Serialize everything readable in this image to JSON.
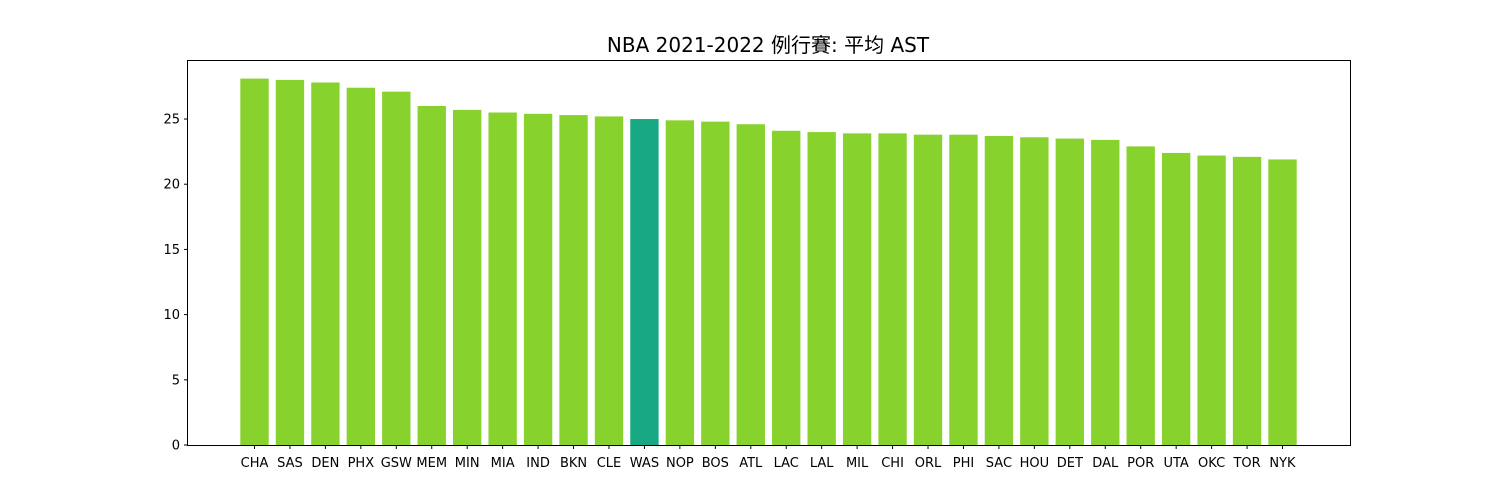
{
  "chart_data": {
    "type": "bar",
    "title": "NBA 2021-2022 例行賽: 平均 AST",
    "xlabel": "",
    "ylabel": "",
    "ylim": [
      0,
      29.45
    ],
    "yticks": [
      0,
      5,
      10,
      15,
      20,
      25
    ],
    "grid": false,
    "categories": [
      "CHA",
      "SAS",
      "DEN",
      "PHX",
      "GSW",
      "MEM",
      "MIN",
      "MIA",
      "IND",
      "BKN",
      "CLE",
      "WAS",
      "NOP",
      "BOS",
      "ATL",
      "LAC",
      "LAL",
      "MIL",
      "CHI",
      "ORL",
      "PHI",
      "SAC",
      "HOU",
      "DET",
      "DAL",
      "POR",
      "UTA",
      "OKC",
      "TOR",
      "NYK"
    ],
    "values": [
      28.1,
      28.0,
      27.8,
      27.4,
      27.1,
      26.0,
      25.7,
      25.5,
      25.4,
      25.3,
      25.2,
      25.0,
      24.9,
      24.8,
      24.6,
      24.1,
      24.0,
      23.9,
      23.9,
      23.8,
      23.8,
      23.7,
      23.6,
      23.5,
      23.4,
      22.9,
      22.4,
      22.2,
      22.1,
      21.9
    ],
    "bar_color": "#88d22e",
    "highlight_category": "WAS",
    "highlight_color": "#19a884"
  }
}
